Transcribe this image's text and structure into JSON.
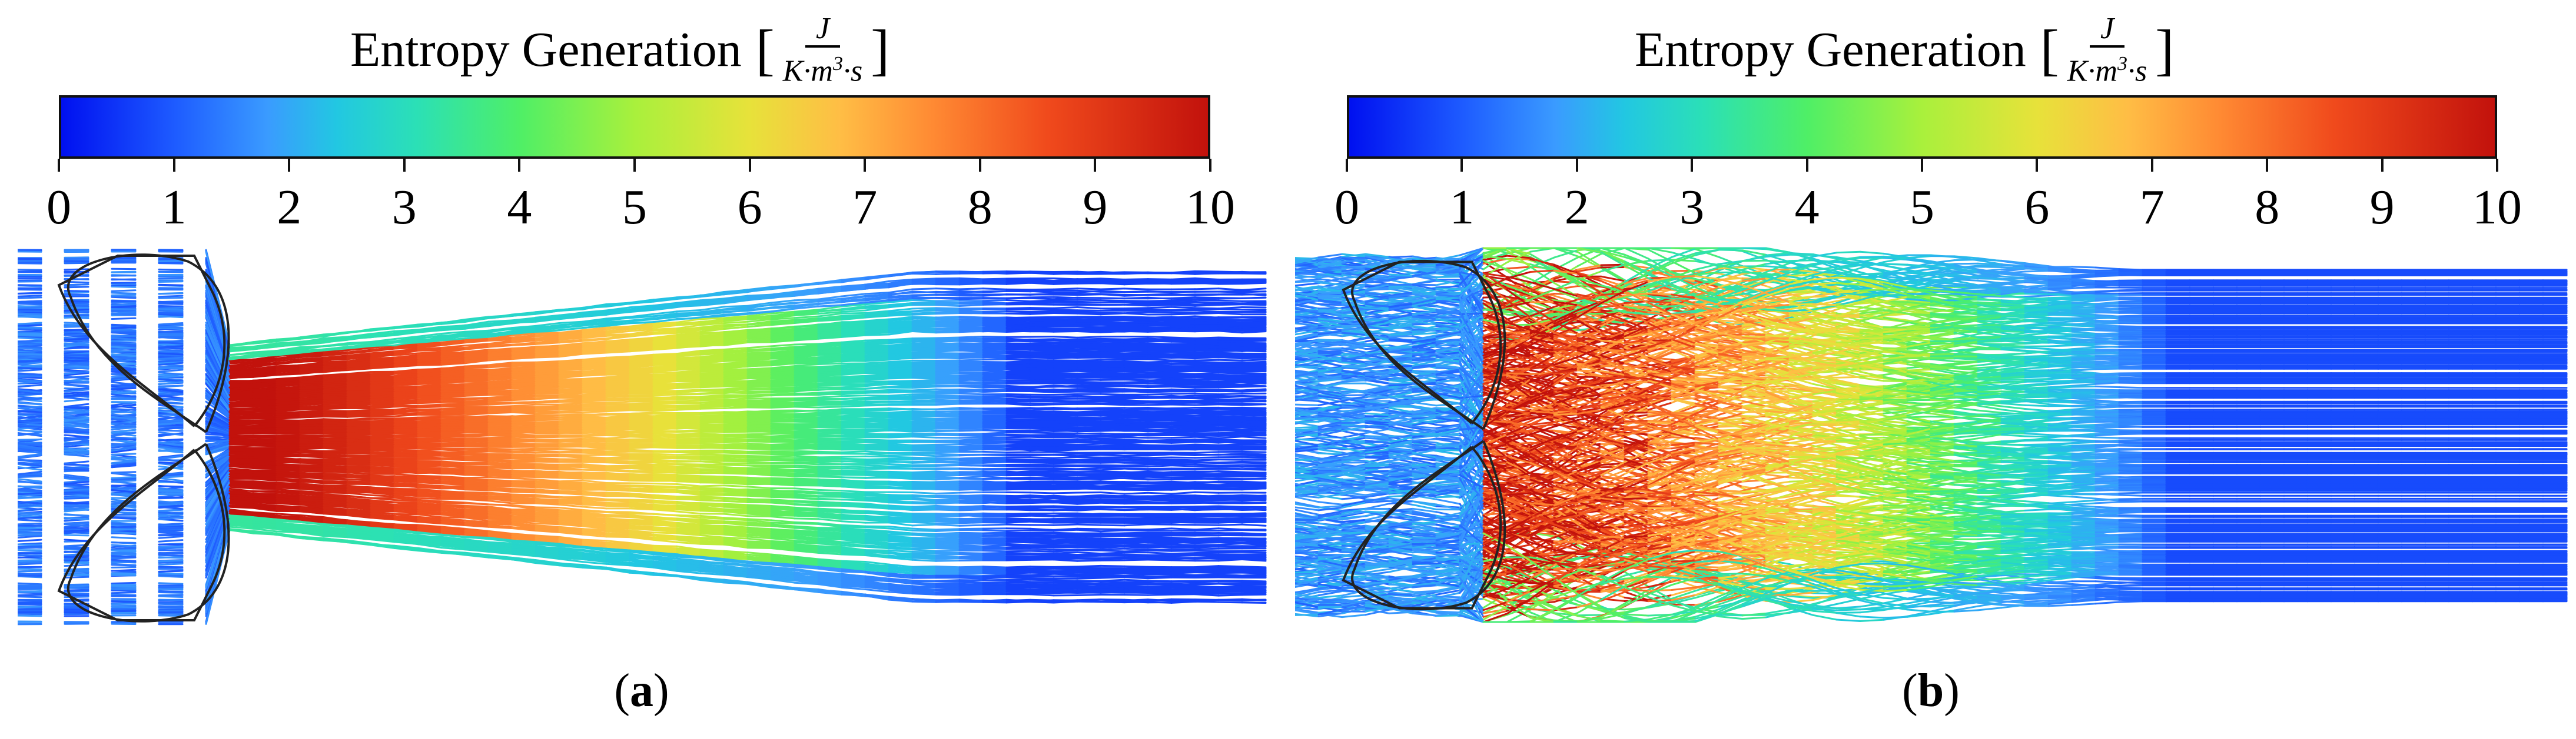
{
  "panels": [
    {
      "id": "a",
      "colorbar_title": "Entropy Generation",
      "unit_numerator": "J",
      "unit_denominator_base": "K·m",
      "unit_denominator_exp": "3",
      "unit_denominator_tail": "·s",
      "tick_labels": [
        "0",
        "1",
        "2",
        "3",
        "4",
        "5",
        "6",
        "7",
        "8",
        "9",
        "10"
      ],
      "caption_open": "(",
      "caption_letter": "a",
      "caption_close": ")"
    },
    {
      "id": "b",
      "colorbar_title": "Entropy Generation",
      "unit_numerator": "J",
      "unit_denominator_base": "K·m",
      "unit_denominator_exp": "3",
      "unit_denominator_tail": "·s",
      "tick_labels": [
        "0",
        "1",
        "2",
        "3",
        "4",
        "5",
        "6",
        "7",
        "8",
        "9",
        "10"
      ],
      "caption_open": "(",
      "caption_letter": "b",
      "caption_close": ")"
    }
  ],
  "colormap": [
    "#0010f0",
    "#1e5cff",
    "#3a9bff",
    "#22c7e2",
    "#2be0b6",
    "#4fef66",
    "#a9f03c",
    "#e7e23a",
    "#ffbd45",
    "#ff8a33",
    "#f04a1c",
    "#c2120c"
  ],
  "colorbar_range": [
    0,
    10
  ]
}
